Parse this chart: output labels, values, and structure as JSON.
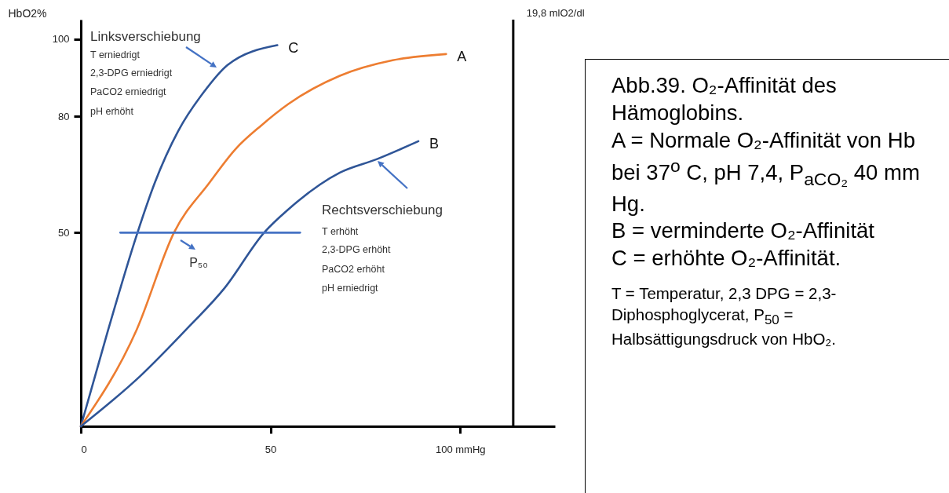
{
  "chart_data": {
    "type": "line",
    "title": "Abb.39. O₂-Affinität des Hämoglobins.",
    "ylabel": "HbO2%",
    "xlim": [
      0,
      125
    ],
    "xticks": [
      0,
      50,
      {
        "value": 100,
        "label": "100 mmHg"
      }
    ],
    "ylim": [
      0,
      105
    ],
    "yticks": [
      50,
      80,
      100
    ],
    "series": [
      {
        "name": "C",
        "color": "#2f5597",
        "x": [
          0,
          7.2,
          14.7,
          19.5,
          25.7,
          32.5,
          38.7,
          51.8
        ],
        "values": [
          0,
          24.9,
          49.3,
          62.9,
          76.3,
          86.4,
          93.3,
          98.4
        ]
      },
      {
        "name": "A",
        "color": "#ed7d31",
        "x": [
          0,
          14.7,
          24.6,
          33.9,
          40.8,
          47.6,
          54.7,
          68.3,
          82.2,
          96.3
        ],
        "values": [
          0,
          24.9,
          50.1,
          62.9,
          71.6,
          77.7,
          83.2,
          90.5,
          94.5,
          96.1
        ]
      },
      {
        "name": "B",
        "color": "#2f5597",
        "x": [
          0,
          15.7,
          27.7,
          37.9,
          48.4,
          54.7,
          68.3,
          78.1,
          89
        ],
        "values": [
          0,
          13,
          24.9,
          35.7,
          50.1,
          56,
          65.5,
          69,
          73.6
        ]
      },
      {
        "color": "#4472c4",
        "x": [
          10.4,
          57.8
        ],
        "values": [
          50,
          50
        ]
      }
    ],
    "ref_lines": [
      {
        "axis": "x",
        "value": 114,
        "label": "19,8 mlO2/dl",
        "color": "#000000"
      }
    ],
    "annotations": [
      "Linksverschiebung",
      "T erniedrigt",
      "2,3-DPG erniedrigt",
      "PaCO2 erniedrigt",
      "pH erhöht",
      "Rechtsverschiebung",
      "T erhöht",
      "2,3-DPG erhöht",
      "PaCO2 erhöht",
      "pH erniedrigt",
      "P₅₀",
      "A = Normale O₂-Affinität von Hb bei 37$^{o}$ C, pH 7,4, P$_{aCO₂}$ 40 mm Hg.",
      "B = verminderte O₂-Affinität",
      "C = erhöhte O₂-Affinität.",
      "T = Temperatur, 2,3 DPG = 2,3-Diphosphoglycerat, P$_{50}$ = Halbsättigungsdruck von HbO₂."
    ],
    "grid": false,
    "line_style": "solid",
    "marker": "none"
  }
}
